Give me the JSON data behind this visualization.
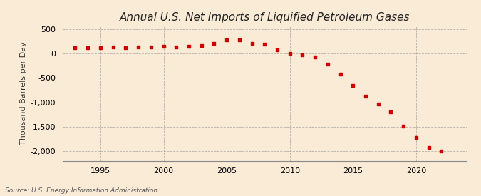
{
  "title": "Annual U.S. Net Imports of Liquified Petroleum Gases",
  "ylabel": "Thousand Barrels per Day",
  "source": "Source: U.S. Energy Information Administration",
  "background_color": "#faebd7",
  "marker_color": "#cc0000",
  "years": [
    1993,
    1994,
    1995,
    1996,
    1997,
    1998,
    1999,
    2000,
    2001,
    2002,
    2003,
    2004,
    2005,
    2006,
    2007,
    2008,
    2009,
    2010,
    2011,
    2012,
    2013,
    2014,
    2015,
    2016,
    2017,
    2018,
    2019,
    2020,
    2021,
    2022
  ],
  "values": [
    120,
    115,
    120,
    130,
    125,
    130,
    130,
    145,
    140,
    155,
    170,
    210,
    290,
    280,
    210,
    200,
    80,
    5,
    -30,
    -75,
    -220,
    -420,
    -650,
    -870,
    -1040,
    -1200,
    -1490,
    -1720,
    -1930,
    -2000
  ],
  "xlim": [
    1992,
    2024
  ],
  "ylim": [
    -2200,
    580
  ],
  "yticks": [
    -2000,
    -1500,
    -1000,
    -500,
    0,
    500
  ],
  "xticks": [
    1995,
    2000,
    2005,
    2010,
    2015,
    2020
  ],
  "grid_color": "#999999",
  "title_fontsize": 11,
  "label_fontsize": 8,
  "tick_fontsize": 8
}
